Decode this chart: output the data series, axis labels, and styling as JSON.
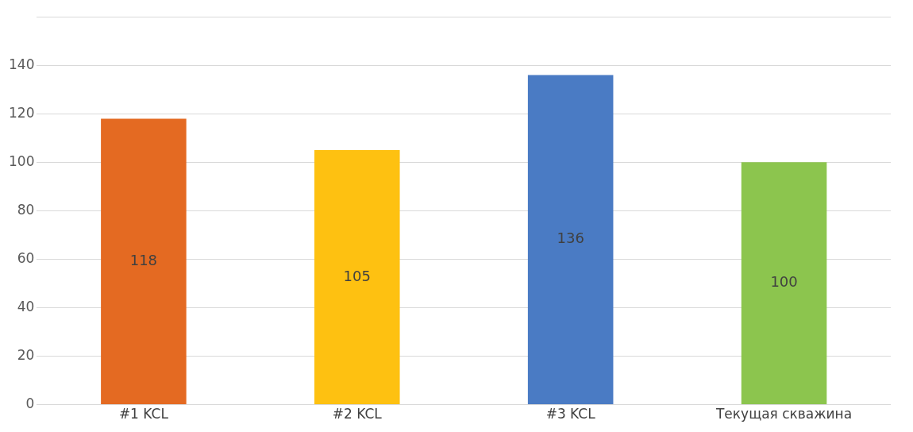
{
  "chart_data": {
    "type": "bar",
    "categories": [
      "#1 KCL",
      "#2 KCL",
      "#3 KCL",
      "Текущая скважина"
    ],
    "values": [
      118,
      105,
      136,
      100
    ],
    "colors": [
      "#e46a22",
      "#fec111",
      "#4a7bc4",
      "#8cc54e"
    ],
    "ylim": [
      0,
      160
    ],
    "yticks": [
      0,
      20,
      40,
      60,
      80,
      100,
      120,
      140,
      {
        "value": 160,
        "label": null
      }
    ],
    "grid": "y",
    "data_labels": true,
    "legend": false
  }
}
